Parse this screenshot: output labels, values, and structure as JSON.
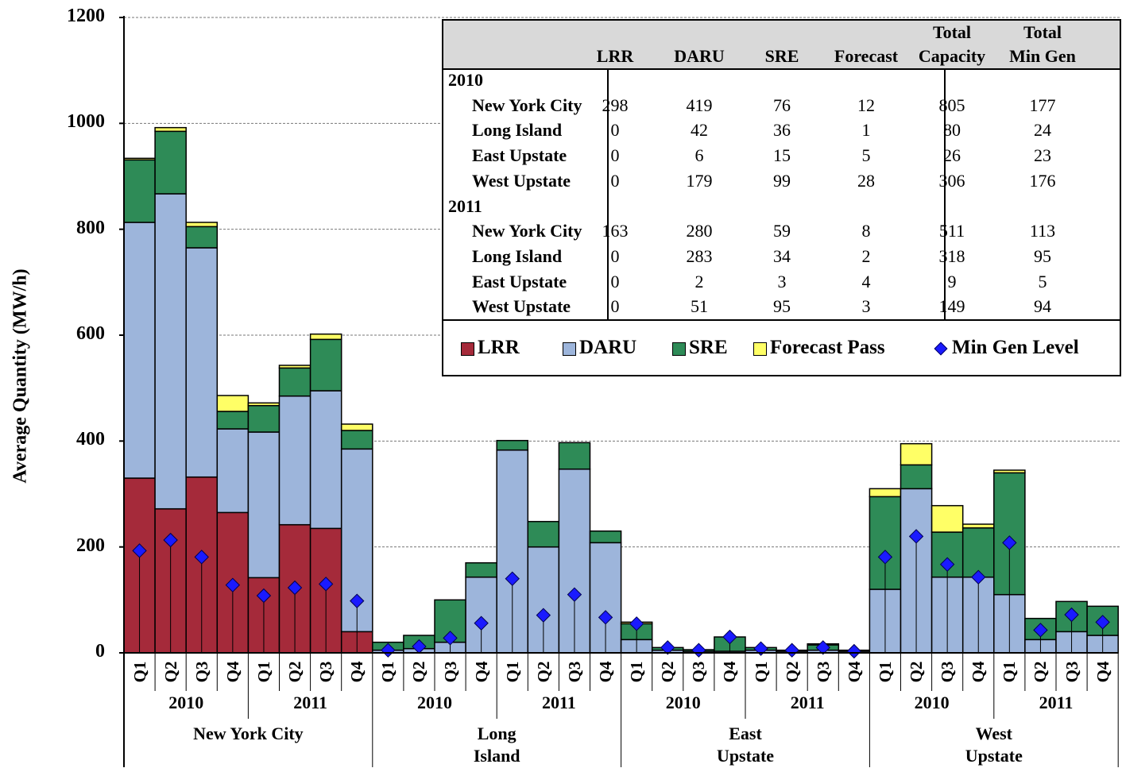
{
  "chart_data": {
    "type": "bar",
    "stacked": true,
    "ylabel": "Average Quantity (MW/h)",
    "ylim": [
      0,
      1200
    ],
    "yticks": [
      0,
      200,
      400,
      600,
      800,
      1000,
      1200
    ],
    "grid": true,
    "colors": {
      "LRR": "#a52a3a",
      "DARU": "#9db5db",
      "SRE": "#2e8b57",
      "Forecast Pass": "#ffff66",
      "Min Gen Level": "#1a1aff"
    },
    "groups": [
      {
        "name": "New York City",
        "years": [
          "2010",
          "2011"
        ]
      },
      {
        "name": "Long\nIsland",
        "years": [
          "2010",
          "2011"
        ]
      },
      {
        "name": "East\nUpstate",
        "years": [
          "2010",
          "2011"
        ]
      },
      {
        "name": "West\nUpstate",
        "years": [
          "2010",
          "2011"
        ]
      }
    ],
    "categories": [
      "Q1",
      "Q2",
      "Q3",
      "Q4",
      "Q1",
      "Q2",
      "Q3",
      "Q4",
      "Q1",
      "Q2",
      "Q3",
      "Q4",
      "Q1",
      "Q2",
      "Q3",
      "Q4",
      "Q1",
      "Q2",
      "Q3",
      "Q4",
      "Q1",
      "Q2",
      "Q3",
      "Q4",
      "Q1",
      "Q2",
      "Q3",
      "Q4",
      "Q1",
      "Q2",
      "Q3",
      "Q4"
    ],
    "series": [
      {
        "name": "LRR",
        "values": [
          330,
          272,
          332,
          265,
          142,
          242,
          235,
          40,
          0,
          0,
          0,
          0,
          0,
          0,
          0,
          0,
          0,
          0,
          0,
          0,
          0,
          0,
          0,
          0,
          0,
          0,
          0,
          0,
          0,
          0,
          0,
          0
        ]
      },
      {
        "name": "DARU",
        "values": [
          483,
          595,
          433,
          158,
          275,
          243,
          260,
          345,
          5,
          8,
          20,
          143,
          383,
          200,
          347,
          208,
          25,
          5,
          3,
          3,
          5,
          3,
          5,
          3,
          120,
          310,
          143,
          143,
          110,
          25,
          40,
          33
        ]
      },
      {
        "name": "SRE",
        "values": [
          118,
          118,
          40,
          33,
          50,
          53,
          97,
          35,
          15,
          25,
          80,
          27,
          18,
          48,
          50,
          22,
          30,
          5,
          3,
          27,
          5,
          2,
          10,
          2,
          175,
          45,
          85,
          93,
          230,
          40,
          57,
          55
        ]
      },
      {
        "name": "Forecast Pass",
        "values": [
          3,
          7,
          8,
          30,
          5,
          5,
          10,
          12,
          0,
          0,
          0,
          0,
          0,
          0,
          0,
          0,
          3,
          0,
          0,
          0,
          0,
          0,
          2,
          0,
          15,
          40,
          50,
          7,
          5,
          0,
          0,
          0
        ]
      },
      {
        "name": "Min Gen Level",
        "values": [
          193,
          213,
          181,
          128,
          108,
          123,
          130,
          98,
          5,
          12,
          28,
          56,
          140,
          71,
          110,
          67,
          55,
          10,
          5,
          30,
          8,
          5,
          10,
          3,
          181,
          220,
          167,
          143,
          208,
          43,
          72,
          58
        ]
      }
    ],
    "table": {
      "columns": [
        "LRR",
        "DARU",
        "SRE",
        "Forecast",
        "Total\nCapacity",
        "Total\nMin Gen"
      ],
      "sections": [
        {
          "year": "2010",
          "rows": [
            {
              "name": "New York City",
              "values": [
                "298",
                "419",
                "76",
                "12",
                "805",
                "177"
              ]
            },
            {
              "name": "Long Island",
              "values": [
                "0",
                "42",
                "36",
                "1",
                "80",
                "24"
              ]
            },
            {
              "name": "East Upstate",
              "values": [
                "0",
                "6",
                "15",
                "5",
                "26",
                "23"
              ]
            },
            {
              "name": "West Upstate",
              "values": [
                "0",
                "179",
                "99",
                "28",
                "306",
                "176"
              ]
            }
          ]
        },
        {
          "year": "2011",
          "rows": [
            {
              "name": "New York City",
              "values": [
                "163",
                "280",
                "59",
                "8",
                "511",
                "113"
              ]
            },
            {
              "name": "Long Island",
              "values": [
                "0",
                "283",
                "34",
                "2",
                "318",
                "95"
              ]
            },
            {
              "name": "East Upstate",
              "values": [
                "0",
                "2",
                "3",
                "4",
                "9",
                "5"
              ]
            },
            {
              "name": "West Upstate",
              "values": [
                "0",
                "51",
                "95",
                "3",
                "149",
                "94"
              ]
            }
          ]
        }
      ]
    },
    "legend": [
      "LRR",
      "DARU",
      "SRE",
      "Forecast Pass",
      "Min Gen Level"
    ]
  }
}
